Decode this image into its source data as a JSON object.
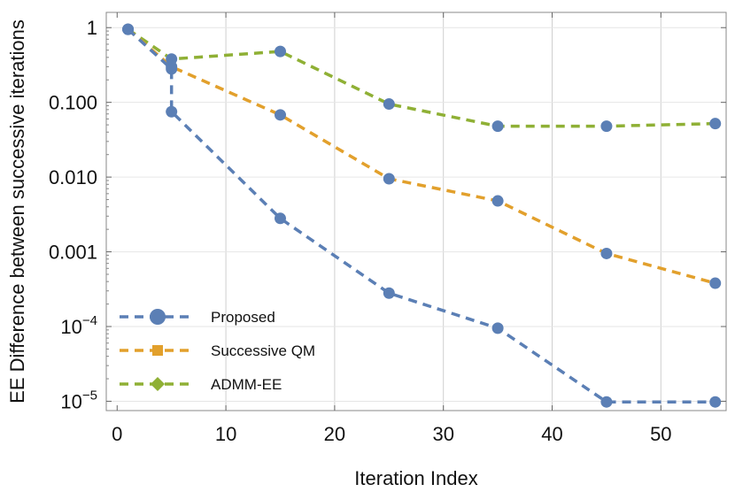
{
  "chart_data": {
    "type": "line",
    "yscale": "log",
    "xlabel": "Iteration Index",
    "ylabel": "EE Difference between successive iterations",
    "xlim": [
      -1,
      56
    ],
    "ylim": [
      7.5e-06,
      1.6
    ],
    "xticks": [
      {
        "value": 0,
        "label": "0"
      },
      {
        "value": 10,
        "label": "10"
      },
      {
        "value": 20,
        "label": "20"
      },
      {
        "value": 30,
        "label": "30"
      },
      {
        "value": 40,
        "label": "40"
      },
      {
        "value": 50,
        "label": "50"
      }
    ],
    "yticks": [
      {
        "value": 1,
        "label": "1",
        "exp": ""
      },
      {
        "value": 0.1,
        "label": "0.100",
        "exp": ""
      },
      {
        "value": 0.01,
        "label": "0.010",
        "exp": ""
      },
      {
        "value": 0.001,
        "label": "0.001",
        "exp": ""
      },
      {
        "value": 0.0001,
        "label": "10",
        "exp": "−4"
      },
      {
        "value": 1e-05,
        "label": "10",
        "exp": "−5"
      }
    ],
    "gridlines_x": [
      10,
      20,
      30,
      40,
      50
    ],
    "gridlines_y": [
      1,
      0.1,
      0.01,
      0.001,
      0.0001,
      1e-05
    ],
    "legend_position": "bottom-left",
    "series": [
      {
        "name": "Proposed",
        "color": "#5b7fb5",
        "marker": "circle",
        "x": [
          1,
          5,
          5,
          15,
          25,
          35,
          45,
          55
        ],
        "values": [
          0.95,
          0.28,
          0.075,
          0.0028,
          0.00028,
          9.5e-05,
          9.8e-06,
          9.8e-06
        ]
      },
      {
        "name": "Successive QM",
        "color": "#e2a02c",
        "marker": "square",
        "x": [
          1,
          5,
          15,
          25,
          35,
          45,
          55
        ],
        "values": [
          0.95,
          0.3,
          0.068,
          0.0095,
          0.0048,
          0.00095,
          0.00038
        ]
      },
      {
        "name": "ADMM-EE",
        "color": "#8fb035",
        "marker": "diamond",
        "x": [
          1,
          5,
          15,
          25,
          35,
          45,
          55
        ],
        "values": [
          0.95,
          0.38,
          0.48,
          0.095,
          0.048,
          0.048,
          0.052
        ]
      }
    ]
  }
}
